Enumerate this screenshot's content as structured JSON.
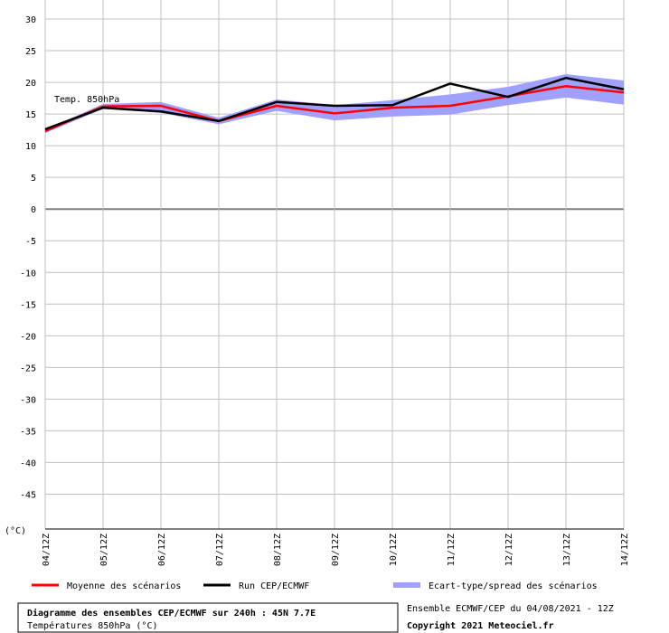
{
  "chart_data": {
    "type": "line",
    "annotation": "Temp. 850hPa",
    "y_unit": "(°C)",
    "categories": [
      "04/12Z",
      "05/12Z",
      "06/12Z",
      "07/12Z",
      "08/12Z",
      "09/12Z",
      "10/12Z",
      "11/12Z",
      "12/12Z",
      "13/12Z",
      "14/12Z"
    ],
    "series": [
      {
        "name": "Moyenne des scénarios",
        "color": "#ff0000",
        "values": [
          12.3,
          16.2,
          16.3,
          13.9,
          16.3,
          15.1,
          16.0,
          16.3,
          17.8,
          19.4,
          18.4
        ]
      },
      {
        "name": "Run CEP/ECMWF",
        "color": "#000000",
        "values": [
          12.6,
          16.0,
          15.4,
          13.9,
          16.9,
          16.3,
          16.4,
          19.8,
          17.7,
          20.7,
          18.9
        ]
      }
    ],
    "band": {
      "name": "Ecart-type/spread des scénarios",
      "color": "#a0a0ff",
      "upper": [
        12.5,
        16.6,
        16.9,
        14.4,
        17.3,
        16.4,
        17.2,
        18.1,
        19.3,
        21.3,
        20.3
      ],
      "lower": [
        12.0,
        15.8,
        15.2,
        13.4,
        15.5,
        14.0,
        14.6,
        14.9,
        16.4,
        17.6,
        16.5
      ]
    },
    "ylim": [
      -50.5,
      33
    ],
    "yticks": [
      30,
      25,
      20,
      15,
      10,
      5,
      0,
      -5,
      -10,
      -15,
      -20,
      -25,
      -30,
      -35,
      -40,
      -45
    ],
    "grid": true,
    "footer_title": "Diagramme des ensembles CEP/ECMWF sur 240h : 45N 7.7E",
    "footer_subtitle": "Températures 850hPa (°C)",
    "run_info": "Ensemble ECMWF/CEP du 04/08/2021 - 12Z",
    "copyright": "Copyright 2021 Meteociel.fr"
  }
}
